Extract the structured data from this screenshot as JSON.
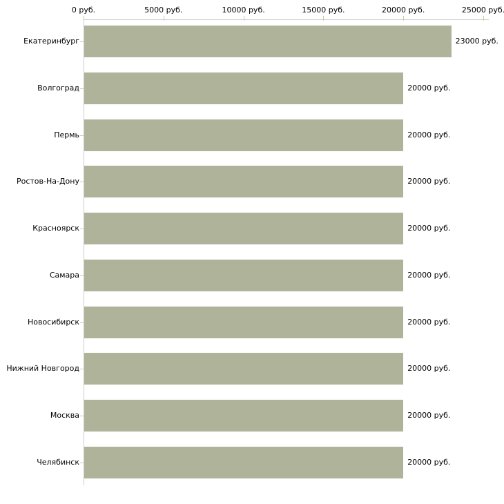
{
  "chart_data": {
    "type": "bar",
    "orientation": "horizontal",
    "title": "",
    "xlabel": "",
    "ylabel": "",
    "legend": "none",
    "grid": false,
    "unit_suffix": " руб.",
    "categories": [
      "Екатеринбург",
      "Волгоград",
      "Пермь",
      "Ростов-На-Дону",
      "Красноярск",
      "Самара",
      "Новосибирск",
      "Нижний Новгород",
      "Москва",
      "Челябинск"
    ],
    "values": [
      23000,
      20000,
      20000,
      20000,
      20000,
      20000,
      20000,
      20000,
      20000,
      20000
    ],
    "value_labels": [
      "23000 руб.",
      "20000 руб.",
      "20000 руб.",
      "20000 руб.",
      "20000 руб.",
      "20000 руб.",
      "20000 руб.",
      "20000 руб.",
      "20000 руб.",
      "20000 руб."
    ],
    "x_tick_values": [
      0,
      5000,
      10000,
      15000,
      20000,
      25000
    ],
    "x_tick_labels": [
      "0 руб.",
      "5000 руб.",
      "10000 руб.",
      "15000 руб.",
      "20000 руб.",
      "25000 руб."
    ],
    "xlim": [
      0,
      25350
    ],
    "colors": {
      "bar": "#aeb399",
      "axis_line": "#cccccc",
      "tick_mark": "#cccc99",
      "text": "#000000",
      "background": "#ffffff"
    }
  }
}
